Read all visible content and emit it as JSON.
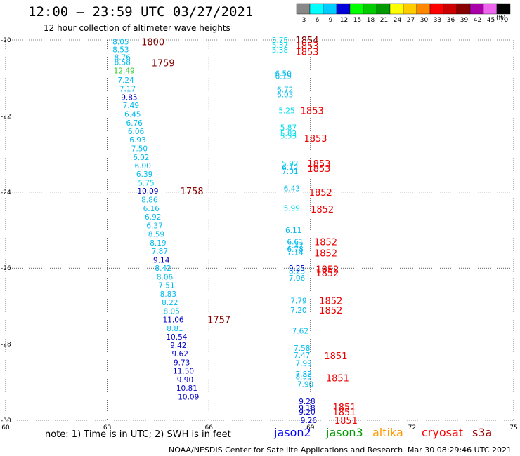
{
  "header": {
    "title": "12:00 – 23:59 UTC 03/27/2021",
    "subtitle": "12 hour collection of altimeter wave heights"
  },
  "legend": {
    "unit": "(ft)",
    "bins": [
      {
        "label": "3",
        "color": "#888888"
      },
      {
        "label": "6",
        "color": "#00ffff"
      },
      {
        "label": "9",
        "color": "#00ccff"
      },
      {
        "label": "12",
        "color": "#0000dd"
      },
      {
        "label": "15",
        "color": "#00ff00"
      },
      {
        "label": "18",
        "color": "#00cc00"
      },
      {
        "label": "21",
        "color": "#009900"
      },
      {
        "label": "24",
        "color": "#ffff00"
      },
      {
        "label": "27",
        "color": "#ffcc00"
      },
      {
        "label": "30",
        "color": "#ff8800"
      },
      {
        "label": "33",
        "color": "#ff0000"
      },
      {
        "label": "36",
        "color": "#cc0000"
      },
      {
        "label": "39",
        "color": "#880000"
      },
      {
        "label": "42",
        "color": "#aa00aa"
      },
      {
        "label": "45",
        "color": "#ee66ee"
      },
      {
        "label": "70",
        "color": "#000000"
      }
    ]
  },
  "notes": {
    "note": "note:  1) Time is in UTC;  2) SWH is in feet",
    "missions": [
      {
        "name": "jason2",
        "color": "#0000ff"
      },
      {
        "name": "jason3",
        "color": "#009900"
      },
      {
        "name": "altika",
        "color": "#ff9900"
      },
      {
        "name": "cryosat",
        "color": "#ff0000"
      },
      {
        "name": "s3a",
        "color": "#990000"
      }
    ]
  },
  "footer": {
    "credit": "NOAA/NESDIS Center for Satellite Applications and Research",
    "timestamp": "Mar 30 08:29:46 UTC 2021"
  },
  "chart_data": {
    "type": "scatter",
    "xlim": [
      60,
      75
    ],
    "ylim": [
      -30,
      -20
    ],
    "x_ticks": [
      60,
      63,
      66,
      69,
      72,
      75
    ],
    "x_tick_labels": [
      "60",
      "63",
      "66",
      "69",
      "72",
      "75"
    ],
    "y_ticks": [
      -20,
      -22,
      -24,
      -26,
      -28,
      -30
    ],
    "y_tick_labels": [
      "-20",
      "-22",
      "-24",
      "-26",
      "-28",
      "-30"
    ],
    "grid": true,
    "series": [
      {
        "points": [
          {
            "x": 63.4,
            "y": -20.05,
            "v": "8.05",
            "color": "#00bbee"
          },
          {
            "x": 63.4,
            "y": -20.25,
            "v": "8.53",
            "color": "#00bbee"
          },
          {
            "x": 63.45,
            "y": -20.45,
            "v": "8.76",
            "color": "#00bbee"
          },
          {
            "x": 63.45,
            "y": -20.58,
            "v": "8.58",
            "color": "#00bbee"
          },
          {
            "x": 63.5,
            "y": -20.8,
            "v": "12.49",
            "color": "#33cc33"
          },
          {
            "x": 63.55,
            "y": -21.05,
            "v": "7.24",
            "color": "#00bbee"
          },
          {
            "x": 63.6,
            "y": -21.28,
            "v": "7.17",
            "color": "#00bbee"
          },
          {
            "x": 63.65,
            "y": -21.5,
            "v": "9.85",
            "color": "#0000cc"
          },
          {
            "x": 63.7,
            "y": -21.72,
            "v": "7.49",
            "color": "#00bbee"
          },
          {
            "x": 63.75,
            "y": -21.95,
            "v": "6.45",
            "color": "#00bbee"
          },
          {
            "x": 63.8,
            "y": -22.18,
            "v": "6.76",
            "color": "#00bbee"
          },
          {
            "x": 63.85,
            "y": -22.4,
            "v": "6.06",
            "color": "#00bbee"
          },
          {
            "x": 63.9,
            "y": -22.62,
            "v": "6.93",
            "color": "#00bbee"
          },
          {
            "x": 63.95,
            "y": -22.85,
            "v": "7.50",
            "color": "#00bbee"
          },
          {
            "x": 64.0,
            "y": -23.08,
            "v": "6.02",
            "color": "#00bbee"
          },
          {
            "x": 64.05,
            "y": -23.3,
            "v": "6.00",
            "color": "#00bbee"
          },
          {
            "x": 64.1,
            "y": -23.52,
            "v": "6.39",
            "color": "#00bbee"
          },
          {
            "x": 64.15,
            "y": -23.75,
            "v": "5.75",
            "color": "#00ddee"
          },
          {
            "x": 64.2,
            "y": -23.97,
            "v": "10.09",
            "color": "#0000cc"
          },
          {
            "x": 64.25,
            "y": -24.2,
            "v": "8.86",
            "color": "#00bbee"
          },
          {
            "x": 64.3,
            "y": -24.43,
            "v": "6.16",
            "color": "#00bbee"
          },
          {
            "x": 64.35,
            "y": -24.65,
            "v": "6.92",
            "color": "#00bbee"
          },
          {
            "x": 64.4,
            "y": -24.88,
            "v": "6.37",
            "color": "#00bbee"
          },
          {
            "x": 64.45,
            "y": -25.1,
            "v": "8.59",
            "color": "#00bbee"
          },
          {
            "x": 64.5,
            "y": -25.33,
            "v": "8.19",
            "color": "#00bbee"
          },
          {
            "x": 64.55,
            "y": -25.55,
            "v": "7.87",
            "color": "#00bbee"
          },
          {
            "x": 64.6,
            "y": -25.78,
            "v": "9.14",
            "color": "#0000cc"
          },
          {
            "x": 64.65,
            "y": -26.0,
            "v": "8.42",
            "color": "#00bbee"
          },
          {
            "x": 64.7,
            "y": -26.23,
            "v": "8.06",
            "color": "#00bbee"
          },
          {
            "x": 64.75,
            "y": -26.45,
            "v": "7.51",
            "color": "#00bbee"
          },
          {
            "x": 64.8,
            "y": -26.68,
            "v": "8.83",
            "color": "#00bbee"
          },
          {
            "x": 64.85,
            "y": -26.9,
            "v": "8.22",
            "color": "#00bbee"
          },
          {
            "x": 64.9,
            "y": -27.13,
            "v": "8.05",
            "color": "#00bbee"
          },
          {
            "x": 64.95,
            "y": -27.35,
            "v": "11.06",
            "color": "#0000cc"
          },
          {
            "x": 65.0,
            "y": -27.58,
            "v": "8.81",
            "color": "#00bbee"
          },
          {
            "x": 65.05,
            "y": -27.8,
            "v": "10.54",
            "color": "#0000cc"
          },
          {
            "x": 65.1,
            "y": -28.03,
            "v": "9.42",
            "color": "#0000cc"
          },
          {
            "x": 65.15,
            "y": -28.25,
            "v": "9.62",
            "color": "#0000cc"
          },
          {
            "x": 65.2,
            "y": -28.48,
            "v": "9.73",
            "color": "#0000cc"
          },
          {
            "x": 65.25,
            "y": -28.7,
            "v": "11.50",
            "color": "#0000cc"
          },
          {
            "x": 65.3,
            "y": -28.93,
            "v": "9.90",
            "color": "#0000cc"
          },
          {
            "x": 65.35,
            "y": -29.15,
            "v": "10.81",
            "color": "#0000cc"
          },
          {
            "x": 65.4,
            "y": -29.38,
            "v": "10.09",
            "color": "#0000cc"
          },
          {
            "x": 68.1,
            "y": -20.0,
            "v": "5.75",
            "color": "#00ddee"
          },
          {
            "x": 68.1,
            "y": -20.13,
            "v": "5.37",
            "color": "#00ddee"
          },
          {
            "x": 68.1,
            "y": -20.26,
            "v": "5.38",
            "color": "#00ddee"
          },
          {
            "x": 68.2,
            "y": -20.88,
            "v": "6.50",
            "color": "#00bbee"
          },
          {
            "x": 68.2,
            "y": -20.95,
            "v": "6.19",
            "color": "#00bbee"
          },
          {
            "x": 68.25,
            "y": -21.3,
            "v": "6.72",
            "color": "#00bbee"
          },
          {
            "x": 68.25,
            "y": -21.43,
            "v": "6.03",
            "color": "#00bbee"
          },
          {
            "x": 68.3,
            "y": -21.85,
            "v": "5.25",
            "color": "#00ddee"
          },
          {
            "x": 68.35,
            "y": -22.3,
            "v": "5.87",
            "color": "#00ddee"
          },
          {
            "x": 68.35,
            "y": -22.45,
            "v": "5.82",
            "color": "#00ddee"
          },
          {
            "x": 68.35,
            "y": -22.52,
            "v": "5.53",
            "color": "#00ddee"
          },
          {
            "x": 68.4,
            "y": -23.25,
            "v": "5.92",
            "color": "#00ddee"
          },
          {
            "x": 68.4,
            "y": -23.35,
            "v": "6.12",
            "color": "#00bbee"
          },
          {
            "x": 68.4,
            "y": -23.45,
            "v": "7.01",
            "color": "#00bbee"
          },
          {
            "x": 68.45,
            "y": -23.9,
            "v": "6.43",
            "color": "#00bbee"
          },
          {
            "x": 68.45,
            "y": -24.42,
            "v": "5.99",
            "color": "#00ddee"
          },
          {
            "x": 68.5,
            "y": -25.0,
            "v": "6.11",
            "color": "#00bbee"
          },
          {
            "x": 68.55,
            "y": -25.3,
            "v": "6.61",
            "color": "#00bbee"
          },
          {
            "x": 68.55,
            "y": -25.4,
            "v": "7.37",
            "color": "#00bbee"
          },
          {
            "x": 68.55,
            "y": -25.5,
            "v": "6.78",
            "color": "#00bbee"
          },
          {
            "x": 68.55,
            "y": -25.58,
            "v": "7.14",
            "color": "#00bbee"
          },
          {
            "x": 68.6,
            "y": -26.0,
            "v": "9.25",
            "color": "#0000cc"
          },
          {
            "x": 68.6,
            "y": -26.08,
            "v": "8.23",
            "color": "#00bbee"
          },
          {
            "x": 68.6,
            "y": -26.25,
            "v": "7.06",
            "color": "#00bbee"
          },
          {
            "x": 68.65,
            "y": -26.85,
            "v": "7.79",
            "color": "#00bbee"
          },
          {
            "x": 68.65,
            "y": -27.1,
            "v": "7.20",
            "color": "#00bbee"
          },
          {
            "x": 68.7,
            "y": -27.65,
            "v": "7.62",
            "color": "#00bbee"
          },
          {
            "x": 68.75,
            "y": -28.1,
            "v": "7.58",
            "color": "#00bbee"
          },
          {
            "x": 68.75,
            "y": -28.28,
            "v": "7.47",
            "color": "#00bbee"
          },
          {
            "x": 68.8,
            "y": -28.5,
            "v": "7.99",
            "color": "#00bbee"
          },
          {
            "x": 68.8,
            "y": -28.78,
            "v": "7.82",
            "color": "#00bbee"
          },
          {
            "x": 68.8,
            "y": -28.85,
            "v": "8.99",
            "color": "#00bbee"
          },
          {
            "x": 68.85,
            "y": -29.05,
            "v": "7.90",
            "color": "#00bbee"
          },
          {
            "x": 68.9,
            "y": -29.5,
            "v": "9.28",
            "color": "#0000cc"
          },
          {
            "x": 68.9,
            "y": -29.68,
            "v": "9.18",
            "color": "#0000cc"
          },
          {
            "x": 68.9,
            "y": -29.78,
            "v": "9.20",
            "color": "#0000cc"
          },
          {
            "x": 68.95,
            "y": -30.0,
            "v": "9.26",
            "color": "#0000cc"
          }
        ]
      }
    ],
    "time_labels": [
      {
        "x": 64.35,
        "y": -20.05,
        "label": "1800",
        "color": "#880000"
      },
      {
        "x": 64.65,
        "y": -20.6,
        "label": "1759",
        "color": "#880000"
      },
      {
        "x": 65.5,
        "y": -23.97,
        "label": "1758",
        "color": "#880000"
      },
      {
        "x": 66.3,
        "y": -27.35,
        "label": "1757",
        "color": "#880000"
      },
      {
        "x": 68.9,
        "y": -20.0,
        "label": "1854",
        "color": "#880000"
      },
      {
        "x": 68.9,
        "y": -20.15,
        "label": "1853",
        "color": "#ee0000"
      },
      {
        "x": 68.9,
        "y": -20.3,
        "label": "1853",
        "color": "#ee0000"
      },
      {
        "x": 69.05,
        "y": -21.85,
        "label": "1853",
        "color": "#ee0000"
      },
      {
        "x": 69.15,
        "y": -22.58,
        "label": "1853",
        "color": "#ee0000"
      },
      {
        "x": 69.25,
        "y": -23.25,
        "label": "1853",
        "color": "#ee0000"
      },
      {
        "x": 69.25,
        "y": -23.38,
        "label": "1853",
        "color": "#ee0000"
      },
      {
        "x": 69.3,
        "y": -24.0,
        "label": "1852",
        "color": "#ee0000"
      },
      {
        "x": 69.35,
        "y": -24.45,
        "label": "1852",
        "color": "#ee0000"
      },
      {
        "x": 69.45,
        "y": -25.3,
        "label": "1852",
        "color": "#ee0000"
      },
      {
        "x": 69.45,
        "y": -25.6,
        "label": "1852",
        "color": "#ee0000"
      },
      {
        "x": 69.5,
        "y": -26.02,
        "label": "1852",
        "color": "#ee0000"
      },
      {
        "x": 69.5,
        "y": -26.13,
        "label": "1852",
        "color": "#ee0000"
      },
      {
        "x": 69.6,
        "y": -26.85,
        "label": "1852",
        "color": "#ee0000"
      },
      {
        "x": 69.6,
        "y": -27.1,
        "label": "1852",
        "color": "#ee0000"
      },
      {
        "x": 69.75,
        "y": -28.3,
        "label": "1851",
        "color": "#ee0000"
      },
      {
        "x": 69.8,
        "y": -28.88,
        "label": "1851",
        "color": "#ee0000"
      },
      {
        "x": 70.0,
        "y": -29.65,
        "label": "1851",
        "color": "#ee0000"
      },
      {
        "x": 70.0,
        "y": -29.78,
        "label": "1851",
        "color": "#ee0000"
      },
      {
        "x": 70.05,
        "y": -30.0,
        "label": "1851",
        "color": "#ee0000"
      }
    ]
  }
}
